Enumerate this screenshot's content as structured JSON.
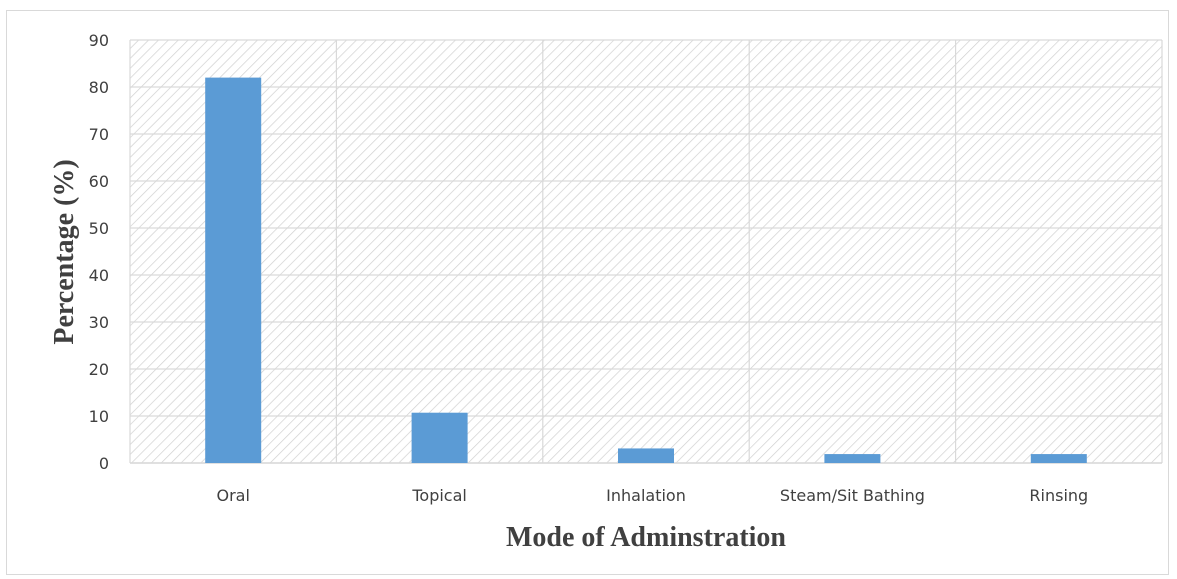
{
  "chart_data": {
    "type": "bar",
    "categories": [
      "Oral",
      "Topical",
      "Inhalation",
      "Steam/Sit Bathing",
      "Rinsing"
    ],
    "values": [
      82,
      10.7,
      3.1,
      1.9,
      1.9
    ],
    "ylim": [
      0,
      90
    ],
    "yticks": [
      0,
      10,
      20,
      30,
      40,
      50,
      60,
      70,
      80,
      90
    ],
    "xlabel": "Mode of Adminstration",
    "ylabel": "Percentage (%)",
    "grid": true,
    "bar_color": "#5b9bd5",
    "legend": "none"
  }
}
